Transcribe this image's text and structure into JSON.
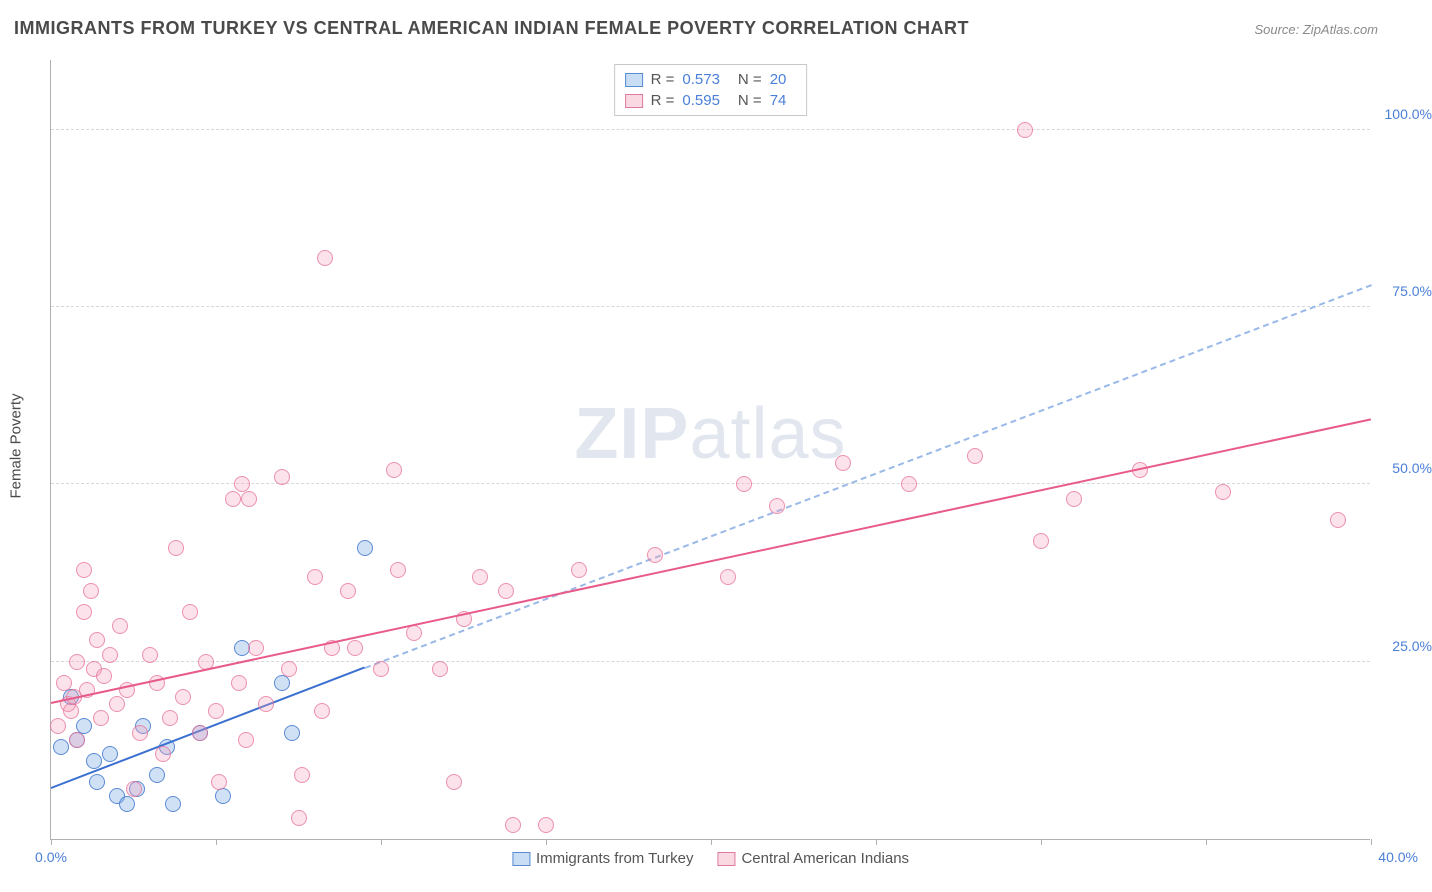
{
  "title": "IMMIGRANTS FROM TURKEY VS CENTRAL AMERICAN INDIAN FEMALE POVERTY CORRELATION CHART",
  "source": "Source: ZipAtlas.com",
  "y_axis_label": "Female Poverty",
  "watermark_zip": "ZIP",
  "watermark_atlas": "atlas",
  "chart": {
    "type": "scatter",
    "xlim": [
      0,
      40
    ],
    "ylim": [
      0,
      110
    ],
    "xtick_step": 5,
    "ytick_step": 25,
    "x_tick_labels": {
      "0": "0.0%",
      "40": "40.0%"
    },
    "y_tick_labels": {
      "25": "25.0%",
      "50": "50.0%",
      "75": "75.0%",
      "100": "100.0%"
    },
    "grid_color": "#d8d8d8",
    "axis_color": "#b0b0b0",
    "background_color": "#ffffff",
    "tick_label_color": "#4a7fd8",
    "marker_radius": 8,
    "series": [
      {
        "name": "Immigrants from Turkey",
        "color_fill": "rgba(120,170,230,0.35)",
        "color_stroke": "#5a8ad0",
        "R": "0.573",
        "N": "20",
        "trend": {
          "x1": 0,
          "y1": 7,
          "x2": 9.5,
          "y2": 24,
          "color": "#3a6fd0",
          "dashed": false
        },
        "trend_ext": {
          "x1": 9.5,
          "y1": 24,
          "x2": 40,
          "y2": 78,
          "dashed": true
        },
        "points": [
          [
            0.3,
            13
          ],
          [
            0.6,
            20
          ],
          [
            0.8,
            14
          ],
          [
            1.0,
            16
          ],
          [
            1.3,
            11
          ],
          [
            1.4,
            8
          ],
          [
            1.8,
            12
          ],
          [
            2.0,
            6
          ],
          [
            2.3,
            5
          ],
          [
            2.6,
            7
          ],
          [
            2.8,
            16
          ],
          [
            3.2,
            9
          ],
          [
            3.5,
            13
          ],
          [
            3.7,
            5
          ],
          [
            4.5,
            15
          ],
          [
            5.2,
            6
          ],
          [
            5.8,
            27
          ],
          [
            7.0,
            22
          ],
          [
            7.3,
            15
          ],
          [
            9.5,
            41
          ]
        ]
      },
      {
        "name": "Central American Indians",
        "color_fill": "rgba(245,160,185,0.3)",
        "color_stroke": "#e07aa0",
        "R": "0.595",
        "N": "74",
        "trend": {
          "x1": 0,
          "y1": 19,
          "x2": 40,
          "y2": 59,
          "color": "#e85a8a",
          "dashed": false
        },
        "points": [
          [
            0.2,
            16
          ],
          [
            0.4,
            22
          ],
          [
            0.5,
            19
          ],
          [
            0.6,
            18
          ],
          [
            0.7,
            20
          ],
          [
            0.8,
            14
          ],
          [
            0.8,
            25
          ],
          [
            1.0,
            32
          ],
          [
            1.0,
            38
          ],
          [
            1.1,
            21
          ],
          [
            1.2,
            35
          ],
          [
            1.3,
            24
          ],
          [
            1.4,
            28
          ],
          [
            1.5,
            17
          ],
          [
            1.6,
            23
          ],
          [
            1.8,
            26
          ],
          [
            2.0,
            19
          ],
          [
            2.1,
            30
          ],
          [
            2.3,
            21
          ],
          [
            2.5,
            7
          ],
          [
            2.7,
            15
          ],
          [
            3.0,
            26
          ],
          [
            3.2,
            22
          ],
          [
            3.4,
            12
          ],
          [
            3.6,
            17
          ],
          [
            3.8,
            41
          ],
          [
            4.0,
            20
          ],
          [
            4.2,
            32
          ],
          [
            4.5,
            15
          ],
          [
            4.7,
            25
          ],
          [
            5.0,
            18
          ],
          [
            5.1,
            8
          ],
          [
            5.5,
            48
          ],
          [
            5.7,
            22
          ],
          [
            5.9,
            14
          ],
          [
            5.8,
            50
          ],
          [
            6.0,
            48
          ],
          [
            6.2,
            27
          ],
          [
            6.5,
            19
          ],
          [
            7.0,
            51
          ],
          [
            7.2,
            24
          ],
          [
            7.5,
            3
          ],
          [
            7.6,
            9
          ],
          [
            8.0,
            37
          ],
          [
            8.2,
            18
          ],
          [
            8.3,
            82
          ],
          [
            8.5,
            27
          ],
          [
            9.0,
            35
          ],
          [
            9.2,
            27
          ],
          [
            10.0,
            24
          ],
          [
            10.5,
            38
          ],
          [
            10.4,
            52
          ],
          [
            11.0,
            29
          ],
          [
            11.8,
            24
          ],
          [
            12.2,
            8
          ],
          [
            12.5,
            31
          ],
          [
            13.0,
            37
          ],
          [
            13.8,
            35
          ],
          [
            14.0,
            2
          ],
          [
            15.0,
            2
          ],
          [
            16.0,
            38
          ],
          [
            18.3,
            40
          ],
          [
            20.5,
            37
          ],
          [
            21.0,
            50
          ],
          [
            22.0,
            47
          ],
          [
            24.0,
            53
          ],
          [
            26.0,
            50
          ],
          [
            28.0,
            54
          ],
          [
            29.5,
            100
          ],
          [
            30.0,
            42
          ],
          [
            31.0,
            48
          ],
          [
            33.0,
            52
          ],
          [
            35.5,
            49
          ],
          [
            39.0,
            45
          ]
        ]
      }
    ]
  },
  "legend_top": [
    {
      "swatch": "blue",
      "R": "0.573",
      "N": "20"
    },
    {
      "swatch": "pink",
      "R": "0.595",
      "N": "74"
    }
  ],
  "legend_bottom": [
    {
      "swatch": "blue",
      "label": "Immigrants from Turkey"
    },
    {
      "swatch": "pink",
      "label": "Central American Indians"
    }
  ]
}
